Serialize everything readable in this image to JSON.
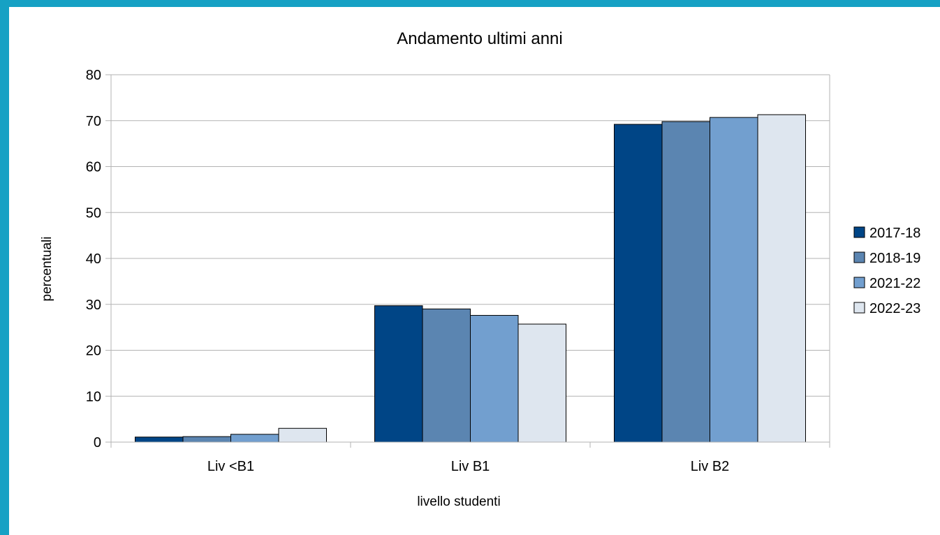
{
  "chart_data": {
    "type": "bar",
    "title": "Andamento ultimi anni",
    "xlabel": "livello studenti",
    "ylabel": "percentuali",
    "categories": [
      "Liv <B1",
      "Liv B1",
      "Liv B2"
    ],
    "series": [
      {
        "name": "2017-18",
        "values": [
          1.1,
          29.7,
          69.2
        ],
        "color": "#004586"
      },
      {
        "name": "2018-19",
        "values": [
          1.2,
          29.0,
          69.8
        ],
        "color": "#5b85b1"
      },
      {
        "name": "2021-22",
        "values": [
          1.7,
          27.6,
          70.7
        ],
        "color": "#729fcf"
      },
      {
        "name": "2022-23",
        "values": [
          3.0,
          25.7,
          71.3
        ],
        "color": "#dee6ef"
      }
    ],
    "ylim": [
      0,
      80
    ],
    "yticks": [
      0,
      10,
      20,
      30,
      40,
      50,
      60,
      70,
      80
    ],
    "grid": true,
    "legend": "right"
  }
}
